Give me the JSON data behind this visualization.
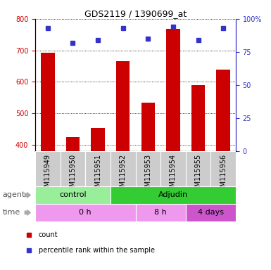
{
  "title": "GDS2119 / 1390699_at",
  "samples": [
    "GSM115949",
    "GSM115950",
    "GSM115951",
    "GSM115952",
    "GSM115953",
    "GSM115954",
    "GSM115955",
    "GSM115956"
  ],
  "counts": [
    692,
    425,
    453,
    665,
    533,
    768,
    590,
    638
  ],
  "percentiles": [
    93,
    82,
    84,
    93,
    85,
    94,
    84,
    93
  ],
  "ylim_left": [
    380,
    800
  ],
  "ylim_right": [
    0,
    100
  ],
  "yticks_left": [
    400,
    500,
    600,
    700,
    800
  ],
  "yticks_right": [
    0,
    25,
    50,
    75,
    100
  ],
  "bar_color": "#cc0000",
  "dot_color": "#3333cc",
  "agent_segments": [
    {
      "label": "control",
      "start": 0,
      "end": 3,
      "color": "#99ee99"
    },
    {
      "label": "Adjudin",
      "start": 3,
      "end": 8,
      "color": "#33cc33"
    }
  ],
  "time_segments": [
    {
      "label": "0 h",
      "start": 0,
      "end": 4,
      "color": "#ee99ee"
    },
    {
      "label": "8 h",
      "start": 4,
      "end": 6,
      "color": "#ee99ee"
    },
    {
      "label": "4 days",
      "start": 6,
      "end": 8,
      "color": "#cc55cc"
    }
  ],
  "agent_row_label": "agent",
  "time_row_label": "time",
  "legend_count_label": "count",
  "legend_pct_label": "percentile rank within the sample",
  "left_axis_color": "#cc0000",
  "right_axis_color": "#3333cc",
  "xtick_bg_color": "#cccccc",
  "title_fontsize": 9,
  "tick_fontsize": 7,
  "annot_fontsize": 8,
  "legend_fontsize": 7
}
